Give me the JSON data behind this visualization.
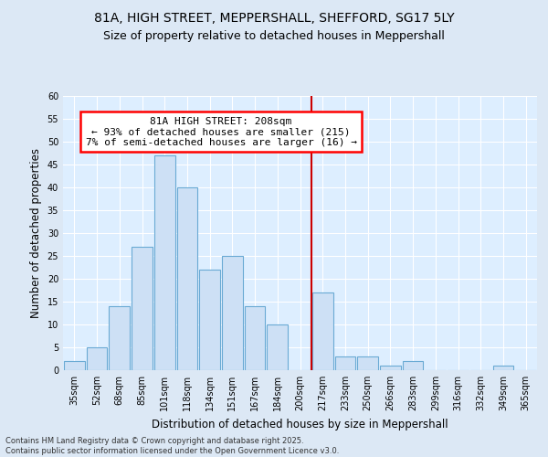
{
  "title1": "81A, HIGH STREET, MEPPERSHALL, SHEFFORD, SG17 5LY",
  "title2": "Size of property relative to detached houses in Meppershall",
  "xlabel": "Distribution of detached houses by size in Meppershall",
  "ylabel": "Number of detached properties",
  "categories": [
    "35sqm",
    "52sqm",
    "68sqm",
    "85sqm",
    "101sqm",
    "118sqm",
    "134sqm",
    "151sqm",
    "167sqm",
    "184sqm",
    "200sqm",
    "217sqm",
    "233sqm",
    "250sqm",
    "266sqm",
    "283sqm",
    "299sqm",
    "316sqm",
    "332sqm",
    "349sqm",
    "365sqm"
  ],
  "values": [
    2,
    5,
    14,
    27,
    47,
    40,
    22,
    25,
    14,
    10,
    0,
    17,
    3,
    3,
    1,
    2,
    0,
    0,
    0,
    1,
    0
  ],
  "bar_color": "#cde0f5",
  "bar_edge_color": "#6aaad4",
  "vline_color": "#cc0000",
  "ylim": [
    0,
    60
  ],
  "yticks": [
    0,
    5,
    10,
    15,
    20,
    25,
    30,
    35,
    40,
    45,
    50,
    55,
    60
  ],
  "bg_color": "#dce8f5",
  "plot_bg": "#ddeeff",
  "grid_color": "#ffffff",
  "highlight_label_line1": "81A HIGH STREET: 208sqm",
  "highlight_label_line2": "← 93% of detached houses are smaller (215)",
  "highlight_label_line3": "7% of semi-detached houses are larger (16) →",
  "footnote": "Contains HM Land Registry data © Crown copyright and database right 2025.\nContains public sector information licensed under the Open Government Licence v3.0.",
  "title_fontsize": 10,
  "subtitle_fontsize": 9,
  "tick_fontsize": 7,
  "ylabel_fontsize": 8.5,
  "xlabel_fontsize": 8.5,
  "annot_fontsize": 8
}
